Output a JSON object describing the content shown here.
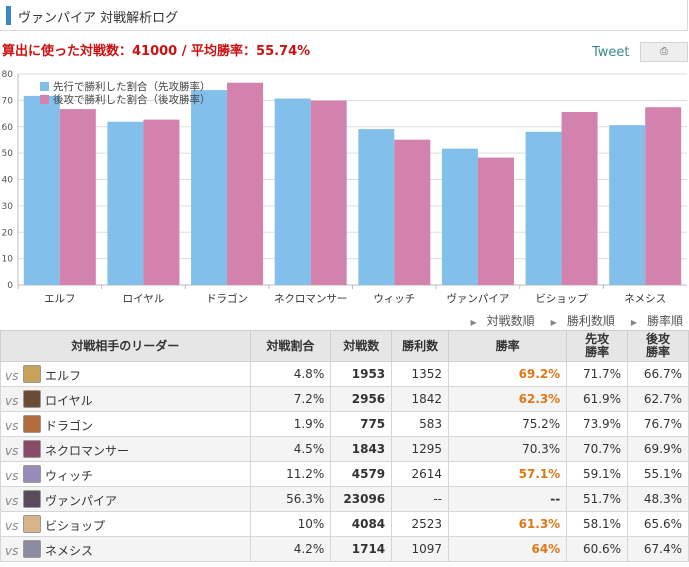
{
  "header": {
    "title": "ヴァンパイア 対戦解析ログ"
  },
  "summary": {
    "text": "算出に使った対戦数：41000 / 平均勝率：55.74%"
  },
  "share": {
    "tweet_label": "Tweet",
    "button_icon": "bookmark-icon"
  },
  "colors": {
    "first": "#82bfea",
    "second": "#d382ad",
    "accent": "#3a87c4",
    "high": "#cc1111",
    "mid": "#e07818"
  },
  "chart_data": {
    "type": "bar",
    "categories": [
      "エルフ",
      "ロイヤル",
      "ドラゴン",
      "ネクロマンサー",
      "ウィッチ",
      "ヴァンパイア",
      "ビショップ",
      "ネメシス"
    ],
    "series": [
      {
        "name": "先行で勝利した割合（先攻勝率）",
        "values": [
          71.7,
          61.9,
          73.9,
          70.7,
          59.1,
          51.7,
          58.1,
          60.6
        ]
      },
      {
        "name": "後攻で勝利した割合（後攻勝率）",
        "values": [
          66.7,
          62.7,
          76.7,
          69.9,
          55.1,
          48.3,
          65.6,
          67.4
        ]
      }
    ],
    "yticks": [
      0,
      10,
      20,
      30,
      40,
      50,
      60,
      70,
      80
    ],
    "ylim": [
      0,
      80
    ],
    "grid": true,
    "legend": "top-left"
  },
  "sort": {
    "items": [
      "対戦数順",
      "勝利数順",
      "勝率順"
    ]
  },
  "table": {
    "headers": [
      "対戦相手のリーダー",
      "対戦割合",
      "対戦数",
      "勝利数",
      "勝率",
      "先攻勝率",
      "後攻勝率"
    ],
    "vs_label": "vs",
    "rows": [
      {
        "leader": "エルフ",
        "share": "4.8%",
        "battles": "1953",
        "wins": "1352",
        "rate": "69.2%",
        "rate_level": "mid",
        "first": "71.7%",
        "second": "66.7%",
        "avatar": "#c9a25a"
      },
      {
        "leader": "ロイヤル",
        "share": "7.2%",
        "battles": "2956",
        "wins": "1842",
        "rate": "62.3%",
        "rate_level": "mid",
        "first": "61.9%",
        "second": "62.7%",
        "avatar": "#6b4a36"
      },
      {
        "leader": "ドラゴン",
        "share": "1.9%",
        "battles": "775",
        "wins": "583",
        "rate": "75.2%",
        "rate_level": "high",
        "first": "73.9%",
        "second": "76.7%",
        "avatar": "#b36a3c"
      },
      {
        "leader": "ネクロマンサー",
        "share": "4.5%",
        "battles": "1843",
        "wins": "1295",
        "rate": "70.3%",
        "rate_level": "high",
        "first": "70.7%",
        "second": "69.9%",
        "avatar": "#8a4a6a"
      },
      {
        "leader": "ウィッチ",
        "share": "11.2%",
        "battles": "4579",
        "wins": "2614",
        "rate": "57.1%",
        "rate_level": "mid",
        "first": "59.1%",
        "second": "55.1%",
        "avatar": "#9a8ab8"
      },
      {
        "leader": "ヴァンパイア",
        "share": "56.3%",
        "battles": "23096",
        "wins": "--",
        "rate": "--",
        "rate_level": "none",
        "first": "51.7%",
        "second": "48.3%",
        "avatar": "#5a4a5a"
      },
      {
        "leader": "ビショップ",
        "share": "10%",
        "battles": "4084",
        "wins": "2523",
        "rate": "61.3%",
        "rate_level": "mid",
        "first": "58.1%",
        "second": "65.6%",
        "avatar": "#d9b48a"
      },
      {
        "leader": "ネメシス",
        "share": "4.2%",
        "battles": "1714",
        "wins": "1097",
        "rate": "64%",
        "rate_level": "mid",
        "first": "60.6%",
        "second": "67.4%",
        "avatar": "#8a8aa0"
      }
    ]
  }
}
